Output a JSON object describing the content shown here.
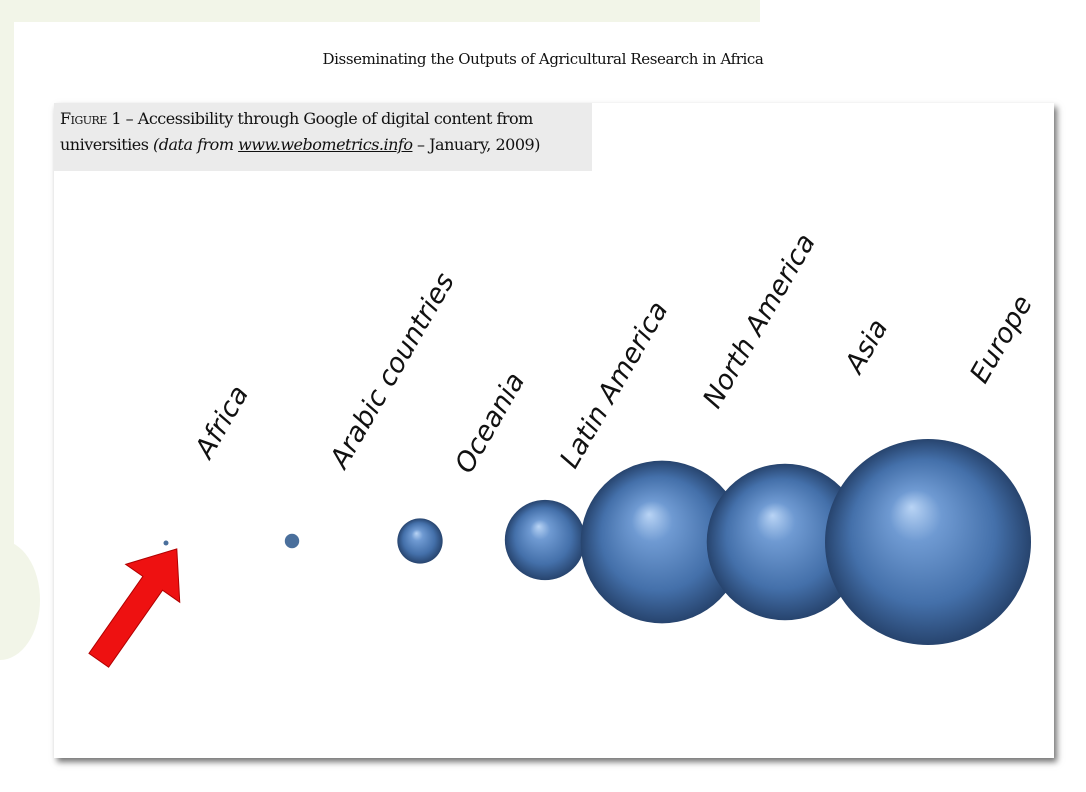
{
  "page": {
    "header": "Disseminating the Outputs of Agricultural Research in Africa"
  },
  "figure": {
    "caption_lead": "Figure 1",
    "caption_mid": " – Accessibility through Google of digital content from universities ",
    "caption_italic": "(data from ",
    "caption_link": "www.webometrics.info",
    "caption_tail": " – January, 2009)"
  },
  "annotation": {
    "arrow_color": "#ee1111",
    "points_to": "Africa"
  },
  "chart_data": {
    "type": "bubble",
    "title": "Figure 1 – Accessibility through Google of digital content from universities (data from www.webometrics.info – January, 2009)",
    "value_meaning": "relative bubble size (no numeric scale printed)",
    "bubble_color": "#4a78b0",
    "categories": [
      "Africa",
      "Arabic countries",
      "Oceania",
      "Latin America",
      "North America",
      "Asia",
      "Europe"
    ],
    "relative_sizes": [
      0.02,
      0.07,
      0.22,
      0.39,
      0.79,
      0.76,
      1.0
    ]
  }
}
